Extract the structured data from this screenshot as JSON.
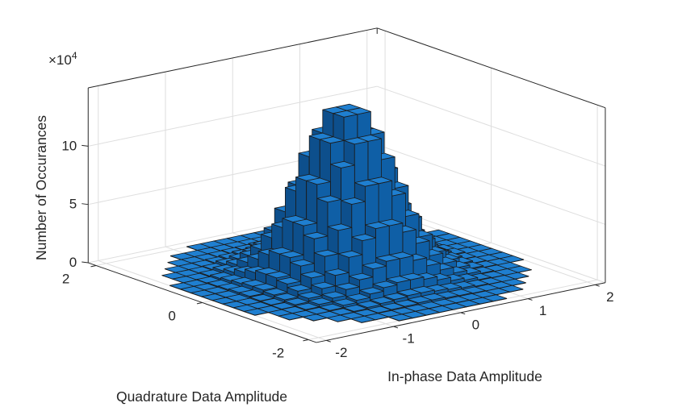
{
  "chart_data": {
    "type": "histogram3d",
    "xlabel": "In-phase Data Amplitude",
    "ylabel": "Quadrature Data Amplitude",
    "zlabel": "Number of Occurances",
    "z_multiplier": "×10",
    "z_multiplier_exp": "4",
    "xlim": [
      -2.15,
      2.15
    ],
    "ylim": [
      -2.15,
      2.15
    ],
    "zlim": [
      0,
      15
    ],
    "x_ticks": [
      {
        "v": -2,
        "label": "-2"
      },
      {
        "v": -1,
        "label": "-1"
      },
      {
        "v": 0,
        "label": "0"
      },
      {
        "v": 1,
        "label": "1"
      },
      {
        "v": 2,
        "label": "2"
      }
    ],
    "y_ticks": [
      {
        "v": -2,
        "label": "-2"
      },
      {
        "v": 0,
        "label": "0"
      },
      {
        "v": 2,
        "label": "2"
      }
    ],
    "z_ticks": [
      {
        "v": 0,
        "label": "0"
      },
      {
        "v": 5,
        "label": "5"
      },
      {
        "v": 10,
        "label": "10"
      }
    ],
    "grid": true,
    "bar_color": "#0f5fa6",
    "bin_centers": [
      -1.9,
      -1.7,
      -1.5,
      -1.3,
      -1.1,
      -0.9,
      -0.7,
      -0.5,
      -0.3,
      -0.1,
      0.1,
      0.3,
      0.5,
      0.7,
      0.9,
      1.1,
      1.3,
      1.5,
      1.7,
      1.9
    ],
    "bin_width": 0.2,
    "counts_x1e4": [
      [
        0,
        0,
        0,
        0,
        0,
        0,
        0.02,
        0.02,
        0.02,
        0.02,
        0.02,
        0.02,
        0.02,
        0.02,
        0,
        0,
        0,
        0,
        0,
        0
      ],
      [
        0,
        0,
        0,
        0,
        0.02,
        0.02,
        0.02,
        0.03,
        0.04,
        0.04,
        0.04,
        0.04,
        0.03,
        0.02,
        0.02,
        0.02,
        0,
        0,
        0,
        0
      ],
      [
        0,
        0,
        0,
        0.02,
        0.02,
        0.03,
        0.06,
        0.1,
        0.13,
        0.2,
        0.2,
        0.13,
        0.1,
        0.06,
        0.03,
        0.02,
        0.02,
        0,
        0,
        0
      ],
      [
        0,
        0,
        0.02,
        0.02,
        0.04,
        0.1,
        0.2,
        0.3,
        0.4,
        0.5,
        0.5,
        0.4,
        0.3,
        0.2,
        0.1,
        0.04,
        0.02,
        0.02,
        0,
        0
      ],
      [
        0,
        0.02,
        0.02,
        0.04,
        0.1,
        0.3,
        0.5,
        0.8,
        1.1,
        1.3,
        1.3,
        1.1,
        0.8,
        0.5,
        0.3,
        0.1,
        0.04,
        0.02,
        0.02,
        0
      ],
      [
        0,
        0.02,
        0.03,
        0.1,
        0.3,
        0.6,
        1.1,
        1.7,
        2.4,
        2.8,
        2.8,
        2.4,
        1.7,
        1.1,
        0.6,
        0.3,
        0.1,
        0.03,
        0.02,
        0
      ],
      [
        0.02,
        0.02,
        0.06,
        0.2,
        0.5,
        1.1,
        2.0,
        3.3,
        4.5,
        5.3,
        5.3,
        4.5,
        3.3,
        2.0,
        1.1,
        0.5,
        0.2,
        0.06,
        0.02,
        0.02
      ],
      [
        0.02,
        0.03,
        0.1,
        0.3,
        0.8,
        1.7,
        3.3,
        5.3,
        7.3,
        8.6,
        8.6,
        7.3,
        5.3,
        3.3,
        1.7,
        0.8,
        0.3,
        0.1,
        0.03,
        0.02
      ],
      [
        0.02,
        0.04,
        0.13,
        0.4,
        1.1,
        2.4,
        4.5,
        7.4,
        10.1,
        11.9,
        11.9,
        10.1,
        7.4,
        4.5,
        2.4,
        1.1,
        0.4,
        0.13,
        0.04,
        0.02
      ],
      [
        0.02,
        0.04,
        0.2,
        0.5,
        1.3,
        2.8,
        5.3,
        8.6,
        11.9,
        13.9,
        13.9,
        11.9,
        8.6,
        5.3,
        2.8,
        1.3,
        0.5,
        0.2,
        0.04,
        0.02
      ],
      [
        0.02,
        0.04,
        0.2,
        0.5,
        1.3,
        2.8,
        5.3,
        8.6,
        11.9,
        13.9,
        13.9,
        11.9,
        8.6,
        5.3,
        2.8,
        1.3,
        0.5,
        0.2,
        0.04,
        0.02
      ],
      [
        0.02,
        0.04,
        0.13,
        0.4,
        1.1,
        2.4,
        4.5,
        7.4,
        10.1,
        11.9,
        11.9,
        10.1,
        7.4,
        4.5,
        2.4,
        1.1,
        0.4,
        0.13,
        0.04,
        0.02
      ],
      [
        0.02,
        0.03,
        0.1,
        0.3,
        0.8,
        1.7,
        3.3,
        5.3,
        7.3,
        8.6,
        8.6,
        7.3,
        5.3,
        3.3,
        1.7,
        0.8,
        0.3,
        0.1,
        0.03,
        0.02
      ],
      [
        0.02,
        0.02,
        0.06,
        0.2,
        0.5,
        1.1,
        2.0,
        3.3,
        4.5,
        5.3,
        5.3,
        4.5,
        3.3,
        2.0,
        1.1,
        0.5,
        0.2,
        0.06,
        0.02,
        0.02
      ],
      [
        0,
        0.02,
        0.03,
        0.1,
        0.3,
        0.6,
        1.1,
        1.7,
        2.4,
        2.8,
        2.8,
        2.4,
        1.7,
        1.1,
        0.6,
        0.3,
        0.1,
        0.03,
        0.02,
        0
      ],
      [
        0,
        0.02,
        0.02,
        0.04,
        0.1,
        0.3,
        0.5,
        0.8,
        1.1,
        1.3,
        1.3,
        1.1,
        0.8,
        0.5,
        0.3,
        0.1,
        0.04,
        0.02,
        0.02,
        0
      ],
      [
        0,
        0,
        0.02,
        0.02,
        0.04,
        0.1,
        0.2,
        0.3,
        0.4,
        0.5,
        0.5,
        0.4,
        0.3,
        0.2,
        0.1,
        0.04,
        0.02,
        0.02,
        0,
        0
      ],
      [
        0,
        0,
        0,
        0.02,
        0.02,
        0.03,
        0.06,
        0.1,
        0.13,
        0.2,
        0.2,
        0.13,
        0.1,
        0.06,
        0.03,
        0.02,
        0.02,
        0,
        0,
        0
      ],
      [
        0,
        0,
        0,
        0,
        0.02,
        0.02,
        0.02,
        0.03,
        0.04,
        0.04,
        0.04,
        0.04,
        0.03,
        0.02,
        0.02,
        0.02,
        0,
        0,
        0,
        0
      ],
      [
        0,
        0,
        0,
        0,
        0,
        0,
        0.02,
        0.02,
        0.02,
        0.02,
        0.02,
        0.02,
        0.02,
        0.02,
        0,
        0,
        0,
        0,
        0,
        0
      ]
    ]
  }
}
